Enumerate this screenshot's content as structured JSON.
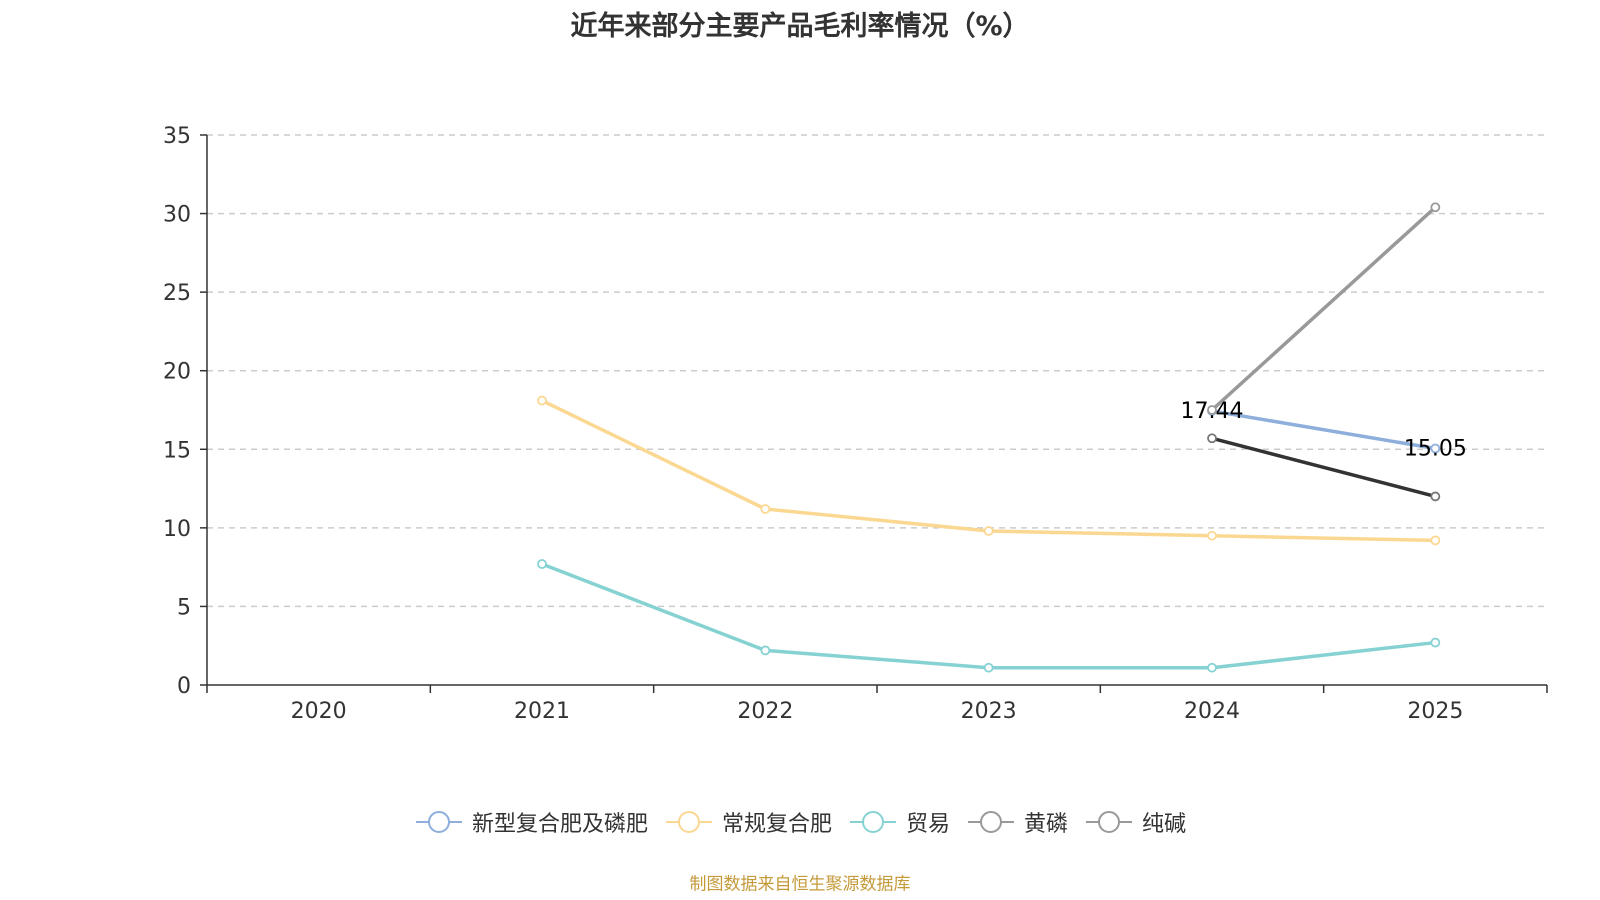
{
  "chart_data": {
    "type": "line",
    "title": "近年来部分主要产品毛利率情况（%）",
    "categories": [
      "2020",
      "2021",
      "2022",
      "2023",
      "2024",
      "2025"
    ],
    "ylim": [
      0,
      35
    ],
    "yticks": [
      0,
      5,
      10,
      15,
      20,
      25,
      30,
      35
    ],
    "grid": true,
    "legend_position": "bottom",
    "series": [
      {
        "name": "新型复合肥及磷肥",
        "color": "#8eaedc",
        "values": [
          null,
          null,
          null,
          null,
          17.44,
          15.05
        ],
        "labels": [
          "",
          "",
          "",
          "",
          "17.44",
          "15.05"
        ]
      },
      {
        "name": "常规复合肥",
        "color": "#fbd892",
        "values": [
          null,
          18.1,
          11.2,
          9.8,
          9.5,
          9.2
        ],
        "labels": []
      },
      {
        "name": "贸易",
        "color": "#86d2d3",
        "values": [
          null,
          7.7,
          2.2,
          1.1,
          1.1,
          2.7
        ],
        "labels": []
      },
      {
        "name": "黄磷",
        "color": "#333333",
        "values": [
          null,
          null,
          null,
          null,
          15.7,
          12.0
        ],
        "labels": []
      },
      {
        "name": "纯碱",
        "color": "#999999",
        "values": [
          null,
          null,
          null,
          null,
          17.5,
          30.4
        ],
        "labels": []
      }
    ],
    "source_note": "制图数据来自恒生聚源数据库"
  }
}
